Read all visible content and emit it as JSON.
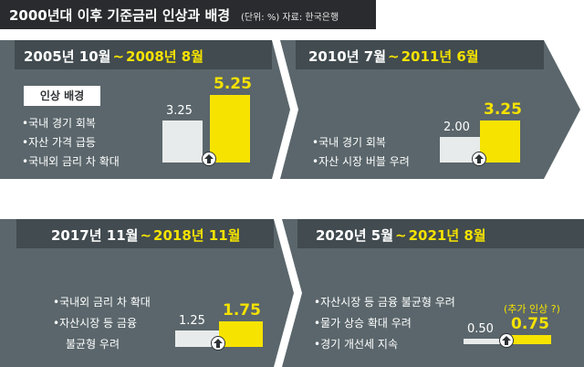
{
  "title": {
    "main": "2000년대 이후 기준금리 인상과 배경",
    "note": "(단위: %) 자료: 한국은행"
  },
  "colors": {
    "accent": "#f5e200",
    "panel_bg": "#5a666b",
    "header_bg": "#414b50",
    "title_bg": "#2a2b2e",
    "bar_before": "#e8ebeb",
    "bar_after": "#f7e300"
  },
  "reason_label": "인상 배경",
  "panels": [
    {
      "period_start": "2005년 10월",
      "tilde": "~",
      "period_end": "2008년 8월",
      "reasons": [
        "•국내 경기 회복",
        "•자산 가격 급등",
        "•국내외 금리 차 확대"
      ],
      "before": "3.25",
      "after": "5.25",
      "icon": "up-arrow-icon"
    },
    {
      "period_start": "2010년 7월",
      "tilde": "~",
      "period_end": "2011년 6월",
      "reasons": [
        "•국내 경기 회복",
        "•자산 시장 버블 우려"
      ],
      "before": "2.00",
      "after": "3.25",
      "icon": "up-arrow-icon"
    },
    {
      "period_start": "2017년 11월",
      "tilde": "~",
      "period_end": "2018년 11월",
      "reasons": [
        "•국내외 금리 차 확대",
        "•자산시장 등 금융",
        "불균형 우려"
      ],
      "before": "1.25",
      "after": "1.75",
      "icon": "up-arrow-icon"
    },
    {
      "period_start": "2020년 5월",
      "tilde": "~",
      "period_end": "2021년 8월",
      "reasons": [
        "•자산시장 등 금융 불균형 우려",
        "•물가 상승 확대 우려",
        "•경기 개선세 지속"
      ],
      "before": "0.50",
      "after": "0.75",
      "extra_note": "(추가 인상 ?)",
      "icon": "up-arrow-icon"
    }
  ],
  "chart_data": {
    "type": "bar",
    "title": "2000년대 이후 기준금리 인상과 배경",
    "unit": "%",
    "categories": [
      "2005년 10월~2008년 8월",
      "2010년 7월~2011년 6월",
      "2017년 11월~2018년 11월",
      "2020년 5월~2021년 8월"
    ],
    "series": [
      {
        "values": [
          3.25,
          2.0,
          1.25,
          0.5
        ]
      },
      {
        "values": [
          5.25,
          3.25,
          1.75,
          0.75
        ]
      }
    ],
    "ylim": [
      0,
      5.25
    ],
    "grid": false,
    "legend": "none"
  }
}
